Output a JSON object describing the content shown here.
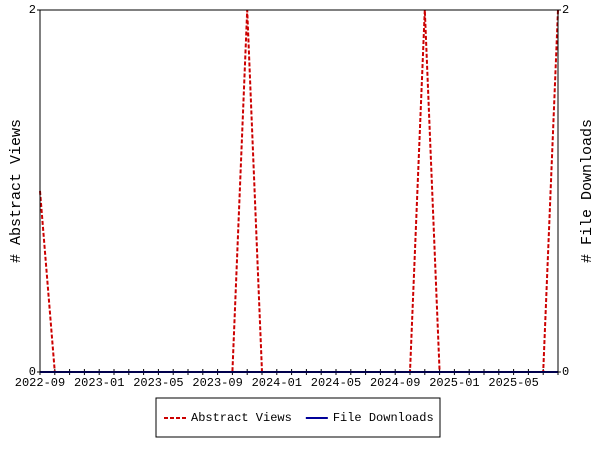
{
  "chart_data": {
    "type": "line",
    "categories": [
      "2022-09",
      null,
      null,
      null,
      "2023-01",
      null,
      null,
      null,
      "2023-05",
      null,
      null,
      null,
      "2023-09",
      null,
      null,
      null,
      "2024-01",
      null,
      null,
      null,
      "2024-05",
      null,
      null,
      null,
      "2024-09",
      null,
      null,
      null,
      "2025-01",
      null,
      null,
      null,
      "2025-05",
      null,
      null,
      null
    ],
    "series": [
      {
        "name": "Abstract Views",
        "color": "#cc0000",
        "dashed": true,
        "axis": "y",
        "values": [
          1,
          0,
          0,
          0,
          0,
          0,
          0,
          0,
          0,
          0,
          0,
          0,
          0,
          0,
          2,
          0,
          0,
          0,
          0,
          0,
          0,
          0,
          0,
          0,
          0,
          0,
          2,
          0,
          0,
          0,
          0,
          0,
          0,
          0,
          0,
          2
        ]
      },
      {
        "name": "File Downloads",
        "color": "#000099",
        "dashed": false,
        "axis": "y2",
        "values": [
          0,
          0,
          0,
          0,
          0,
          0,
          0,
          0,
          0,
          0,
          0,
          0,
          0,
          0,
          0,
          0,
          0,
          0,
          0,
          0,
          0,
          0,
          0,
          0,
          0,
          0,
          0,
          0,
          0,
          0,
          0,
          0,
          0,
          0,
          0,
          0
        ]
      }
    ],
    "ylabel": "# Abstract Views",
    "y2label": "# File Downloads",
    "ylim": [
      0,
      2
    ],
    "yticks": [
      0,
      2
    ],
    "y2lim": [
      0,
      2
    ],
    "y2ticks": [
      0,
      2
    ],
    "grid": false,
    "legend": "bottom"
  }
}
